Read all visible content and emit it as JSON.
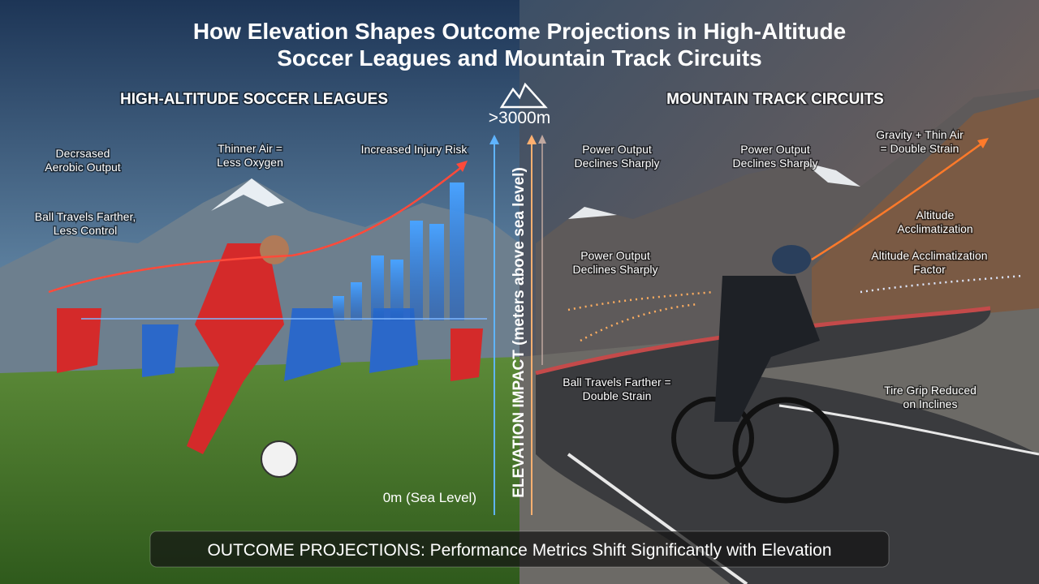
{
  "title_lines": [
    "How Elevation Shapes Outcome Projections in High-Altitude",
    "Soccer Leagues and Mountain Track Circuits"
  ],
  "left": {
    "heading": "HIGH-ALTITUDE SOCCER LEAGUES",
    "labels": [
      {
        "lines": [
          "Decrsased",
          "Aerobic Output"
        ]
      },
      {
        "lines": [
          "Thinner Air =",
          "Less Oxygen"
        ]
      },
      {
        "lines": [
          "Increased Injury Risk"
        ]
      },
      {
        "lines": [
          "Ball Travels Farther,",
          "Less Control"
        ]
      }
    ]
  },
  "center": {
    "top_label": ">3000m",
    "axis_label": "ELEVATION IMPACT (meters above sea level)",
    "bottom_label": "0m (Sea Level)"
  },
  "right": {
    "heading": "MOUNTAIN TRACK CIRCUITS",
    "labels": [
      {
        "lines": [
          "Power Output",
          "Declines Sharply"
        ]
      },
      {
        "lines": [
          "Power Output",
          "Declines Sharply"
        ]
      },
      {
        "lines": [
          "Gravity + Thin Air",
          "= Double Strain"
        ]
      },
      {
        "lines": [
          "Altitude",
          "Acclimatization"
        ]
      },
      {
        "lines": [
          "Power Output",
          "Declines Sharply"
        ]
      },
      {
        "lines": [
          "Altitude Acclimatization",
          "Factor"
        ]
      },
      {
        "lines": [
          "Ball Travels Farther =",
          "Double Strain"
        ]
      },
      {
        "lines": [
          "Tire Grip Reduced",
          "on Inclines"
        ]
      }
    ]
  },
  "footer": "OUTCOME PROJECTIONS: Performance Metrics Shift Significantly with Elevation"
}
